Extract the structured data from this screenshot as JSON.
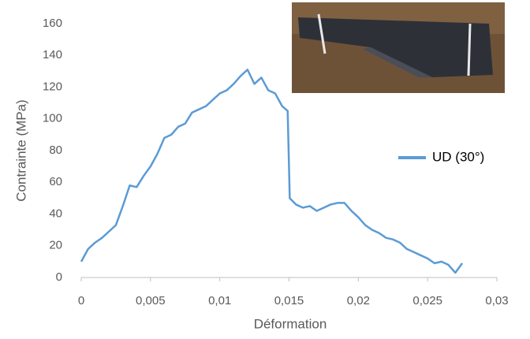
{
  "chart_data": {
    "type": "line",
    "x_label": "Déformation",
    "y_label": "Contrainte (MPa)",
    "xlim": [
      0,
      0.03
    ],
    "xticks": [
      0,
      {
        "value": 0.005,
        "label": "0,005"
      },
      {
        "value": 0.01,
        "label": "0,01"
      },
      {
        "value": 0.015,
        "label": "0,015"
      },
      {
        "value": 0.02,
        "label": "0,02"
      },
      {
        "value": 0.025,
        "label": "0,025"
      },
      {
        "value": 0.03,
        "label": "0,03"
      }
    ],
    "ylim": [
      0,
      160
    ],
    "yticks": [
      0,
      20,
      40,
      60,
      80,
      100,
      120,
      140,
      160
    ],
    "grid": false,
    "legend": "right",
    "series": [
      {
        "name": "UD (30°)",
        "color": "#5b9bd5",
        "x": [
          0,
          0.0005,
          0.001,
          0.0015,
          0.002,
          0.0025,
          0.003,
          0.0035,
          0.004,
          0.0045,
          0.005,
          0.0055,
          0.006,
          0.0065,
          0.007,
          0.0075,
          0.008,
          0.0085,
          0.009,
          0.0095,
          0.01,
          0.0105,
          0.011,
          0.0115,
          0.012,
          0.0125,
          0.013,
          0.0135,
          0.014,
          0.0145,
          0.0149,
          0.01505,
          0.0155,
          0.016,
          0.0165,
          0.017,
          0.0175,
          0.018,
          0.0185,
          0.019,
          0.0195,
          0.02,
          0.0205,
          0.021,
          0.0215,
          0.022,
          0.0225,
          0.023,
          0.0235,
          0.024,
          0.0245,
          0.025,
          0.0255,
          0.026,
          0.0265,
          0.027,
          0.0275
        ],
        "values": [
          10,
          18,
          22,
          25,
          29,
          33,
          45,
          58,
          57,
          64,
          70,
          78,
          88,
          90,
          95,
          97,
          104,
          106,
          108,
          112,
          116,
          118,
          122,
          127,
          131,
          122,
          126,
          118,
          116,
          108,
          105,
          50,
          46,
          44,
          45,
          42,
          44,
          46,
          47,
          47,
          42,
          38,
          33,
          30,
          28,
          25,
          24,
          22,
          18,
          16,
          14,
          12,
          9,
          10,
          8,
          3,
          9
        ]
      }
    ]
  }
}
